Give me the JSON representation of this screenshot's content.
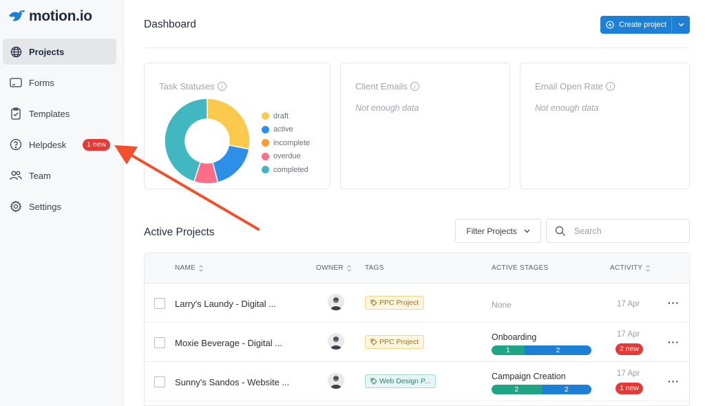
{
  "app": {
    "logo_text": "motion.io"
  },
  "sidebar": {
    "items": [
      {
        "label": "Projects",
        "icon": "globe-icon"
      },
      {
        "label": "Forms",
        "icon": "form-icon"
      },
      {
        "label": "Templates",
        "icon": "clipboard-icon"
      },
      {
        "label": "Helpdesk",
        "icon": "help-circle-icon",
        "badge": "1 new"
      },
      {
        "label": "Team",
        "icon": "team-icon"
      },
      {
        "label": "Settings",
        "icon": "gear-icon"
      }
    ]
  },
  "header": {
    "title": "Dashboard",
    "create_label": "Create project"
  },
  "cards": {
    "task_statuses": {
      "title": "Task Statuses",
      "chart_data": {
        "type": "pie",
        "categories": [
          "draft",
          "active",
          "incomplete",
          "overdue",
          "completed"
        ],
        "values": [
          28,
          18,
          0,
          9,
          45
        ],
        "colors": [
          "#fbc94e",
          "#2e8fe8",
          "#fb9a2c",
          "#fb6e85",
          "#41b7c2"
        ]
      }
    },
    "client_emails": {
      "title": "Client Emails",
      "subtitle": "Not enough data"
    },
    "email_open_rate": {
      "title": "Email Open Rate",
      "subtitle": "Not enough data"
    }
  },
  "projects": {
    "title": "Active Projects",
    "filter_label": "Filter Projects",
    "search_placeholder": "Search",
    "columns": {
      "name": "NAME",
      "owner": "OWNER",
      "tags": "TAGS",
      "stages": "ACTIVE STAGES",
      "activity": "ACTIVITY"
    },
    "rows": [
      {
        "name": "Larry's Laundy - Digital ...",
        "tag": "PPC Project",
        "stage": "None",
        "date": "17 Apr"
      },
      {
        "name": "Moxie Beverage - Digital ...",
        "tag": "PPC Project",
        "stage": "Onboarding",
        "bar": [
          "1",
          "2"
        ],
        "date": "17 Apr",
        "new": "2 new"
      },
      {
        "name": "Sunny's Sandos - Website ...",
        "tag": "Web Design P...",
        "stage": "Campaign Creation",
        "bar": [
          "2",
          "2"
        ],
        "date": "17 Apr",
        "new": "1 new"
      }
    ]
  },
  "colors": {
    "accent": "#1e7fd6",
    "badge": "#e53935",
    "bar_green": "#1fa586",
    "bar_blue": "#1e7fd6",
    "arrow": "#f2502c"
  }
}
